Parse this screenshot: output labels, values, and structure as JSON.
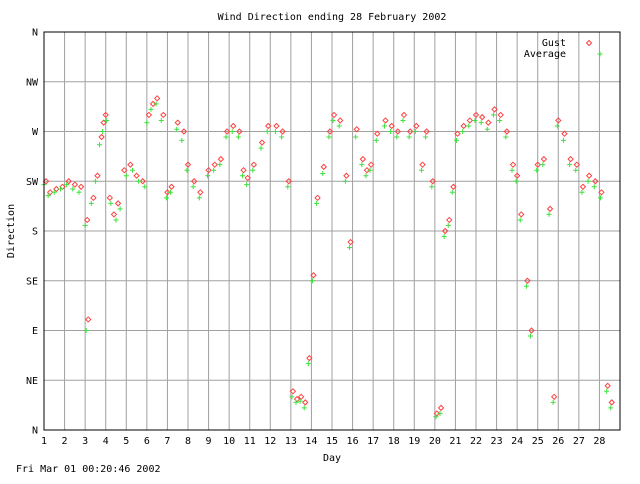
{
  "chart_data": {
    "type": "scatter",
    "title": "Wind Direction ending 28 February 2002",
    "xlabel": "Day",
    "ylabel": "Direction",
    "x_ticks": [
      "1",
      "2",
      "3",
      "4",
      "5",
      "6",
      "7",
      "8",
      "9",
      "10",
      "11",
      "12",
      "13",
      "14",
      "15",
      "16",
      "17",
      "18",
      "19",
      "20",
      "21",
      "22",
      "23",
      "24",
      "25",
      "26",
      "27",
      "28"
    ],
    "y_ticks": [
      "N",
      "NE",
      "E",
      "SE",
      "S",
      "SW",
      "W",
      "NW",
      "N"
    ],
    "xlim": [
      1,
      29
    ],
    "ylim": [
      0,
      360
    ],
    "grid": true,
    "legend_position": "top-right",
    "series": [
      {
        "name": "Gust",
        "marker": "diamond",
        "color": "#ff4040",
        "points": [
          [
            1.1,
            225
          ],
          [
            1.3,
            215
          ],
          [
            1.6,
            218
          ],
          [
            1.9,
            220
          ],
          [
            2.2,
            225
          ],
          [
            2.5,
            222
          ],
          [
            2.8,
            220
          ],
          [
            3.1,
            190
          ],
          [
            3.15,
            100
          ],
          [
            3.4,
            210
          ],
          [
            3.6,
            230
          ],
          [
            3.8,
            265
          ],
          [
            3.9,
            278
          ],
          [
            4.0,
            285
          ],
          [
            4.2,
            210
          ],
          [
            4.4,
            195
          ],
          [
            4.6,
            205
          ],
          [
            4.9,
            235
          ],
          [
            5.2,
            240
          ],
          [
            5.5,
            230
          ],
          [
            5.8,
            225
          ],
          [
            6.1,
            285
          ],
          [
            6.3,
            295
          ],
          [
            6.5,
            300
          ],
          [
            6.8,
            285
          ],
          [
            7.0,
            215
          ],
          [
            7.2,
            220
          ],
          [
            7.5,
            278
          ],
          [
            7.8,
            270
          ],
          [
            8.0,
            240
          ],
          [
            8.3,
            225
          ],
          [
            8.6,
            215
          ],
          [
            9.0,
            235
          ],
          [
            9.3,
            240
          ],
          [
            9.6,
            245
          ],
          [
            9.9,
            270
          ],
          [
            10.2,
            275
          ],
          [
            10.5,
            270
          ],
          [
            10.7,
            235
          ],
          [
            10.9,
            228
          ],
          [
            11.2,
            240
          ],
          [
            11.6,
            260
          ],
          [
            11.9,
            275
          ],
          [
            12.3,
            275
          ],
          [
            12.6,
            270
          ],
          [
            12.9,
            225
          ],
          [
            13.1,
            35
          ],
          [
            13.3,
            28
          ],
          [
            13.5,
            30
          ],
          [
            13.7,
            25
          ],
          [
            13.9,
            65
          ],
          [
            14.1,
            140
          ],
          [
            14.3,
            210
          ],
          [
            14.6,
            238
          ],
          [
            14.9,
            270
          ],
          [
            15.1,
            285
          ],
          [
            15.4,
            280
          ],
          [
            15.7,
            230
          ],
          [
            15.9,
            170
          ],
          [
            16.2,
            272
          ],
          [
            16.5,
            245
          ],
          [
            16.7,
            235
          ],
          [
            16.9,
            240
          ],
          [
            17.2,
            268
          ],
          [
            17.6,
            280
          ],
          [
            17.9,
            275
          ],
          [
            18.2,
            270
          ],
          [
            18.5,
            285
          ],
          [
            18.8,
            270
          ],
          [
            19.1,
            275
          ],
          [
            19.4,
            240
          ],
          [
            19.6,
            270
          ],
          [
            19.9,
            225
          ],
          [
            20.1,
            15
          ],
          [
            20.3,
            20
          ],
          [
            20.5,
            180
          ],
          [
            20.7,
            190
          ],
          [
            20.9,
            220
          ],
          [
            21.1,
            268
          ],
          [
            21.4,
            275
          ],
          [
            21.7,
            280
          ],
          [
            22.0,
            285
          ],
          [
            22.3,
            283
          ],
          [
            22.6,
            278
          ],
          [
            22.9,
            290
          ],
          [
            23.2,
            285
          ],
          [
            23.5,
            270
          ],
          [
            23.8,
            240
          ],
          [
            24.0,
            230
          ],
          [
            24.2,
            195
          ],
          [
            24.5,
            135
          ],
          [
            24.7,
            90
          ],
          [
            25.0,
            240
          ],
          [
            25.3,
            245
          ],
          [
            25.6,
            200
          ],
          [
            25.8,
            30
          ],
          [
            26.0,
            280
          ],
          [
            26.3,
            268
          ],
          [
            26.6,
            245
          ],
          [
            26.9,
            240
          ],
          [
            27.2,
            220
          ],
          [
            27.5,
            230
          ],
          [
            27.8,
            225
          ],
          [
            28.1,
            215
          ],
          [
            28.4,
            40
          ],
          [
            28.6,
            25
          ]
        ]
      },
      {
        "name": "Average",
        "marker": "plus",
        "color": "#40e040",
        "points": [
          [
            1.0,
            222
          ],
          [
            1.2,
            212
          ],
          [
            1.5,
            215
          ],
          [
            1.8,
            218
          ],
          [
            2.1,
            222
          ],
          [
            2.4,
            218
          ],
          [
            2.7,
            215
          ],
          [
            3.0,
            185
          ],
          [
            3.05,
            90
          ],
          [
            3.3,
            205
          ],
          [
            3.5,
            225
          ],
          [
            3.7,
            258
          ],
          [
            3.85,
            270
          ],
          [
            4.05,
            280
          ],
          [
            4.25,
            205
          ],
          [
            4.5,
            190
          ],
          [
            4.7,
            200
          ],
          [
            5.0,
            230
          ],
          [
            5.3,
            235
          ],
          [
            5.6,
            225
          ],
          [
            5.9,
            220
          ],
          [
            6.0,
            278
          ],
          [
            6.2,
            290
          ],
          [
            6.45,
            295
          ],
          [
            6.7,
            280
          ],
          [
            6.95,
            210
          ],
          [
            7.15,
            215
          ],
          [
            7.45,
            272
          ],
          [
            7.7,
            262
          ],
          [
            7.95,
            235
          ],
          [
            8.25,
            220
          ],
          [
            8.55,
            210
          ],
          [
            8.95,
            230
          ],
          [
            9.25,
            235
          ],
          [
            9.55,
            240
          ],
          [
            9.85,
            265
          ],
          [
            10.15,
            270
          ],
          [
            10.45,
            265
          ],
          [
            10.65,
            230
          ],
          [
            10.85,
            222
          ],
          [
            11.15,
            235
          ],
          [
            11.55,
            255
          ],
          [
            11.85,
            270
          ],
          [
            12.25,
            270
          ],
          [
            12.55,
            265
          ],
          [
            12.85,
            220
          ],
          [
            13.05,
            30
          ],
          [
            13.25,
            25
          ],
          [
            13.45,
            26
          ],
          [
            13.65,
            20
          ],
          [
            13.85,
            60
          ],
          [
            14.05,
            135
          ],
          [
            14.25,
            205
          ],
          [
            14.55,
            232
          ],
          [
            14.85,
            265
          ],
          [
            15.05,
            280
          ],
          [
            15.35,
            275
          ],
          [
            15.65,
            225
          ],
          [
            15.85,
            165
          ],
          [
            16.15,
            265
          ],
          [
            16.45,
            240
          ],
          [
            16.65,
            230
          ],
          [
            16.85,
            235
          ],
          [
            17.15,
            262
          ],
          [
            17.55,
            275
          ],
          [
            17.85,
            270
          ],
          [
            18.15,
            265
          ],
          [
            18.45,
            280
          ],
          [
            18.75,
            265
          ],
          [
            19.05,
            270
          ],
          [
            19.35,
            235
          ],
          [
            19.55,
            265
          ],
          [
            19.85,
            220
          ],
          [
            20.05,
            12
          ],
          [
            20.25,
            15
          ],
          [
            20.45,
            175
          ],
          [
            20.65,
            185
          ],
          [
            20.85,
            215
          ],
          [
            21.05,
            262
          ],
          [
            21.35,
            270
          ],
          [
            21.65,
            275
          ],
          [
            21.95,
            280
          ],
          [
            22.25,
            278
          ],
          [
            22.55,
            272
          ],
          [
            22.85,
            285
          ],
          [
            23.15,
            280
          ],
          [
            23.45,
            265
          ],
          [
            23.75,
            235
          ],
          [
            23.95,
            225
          ],
          [
            24.15,
            190
          ],
          [
            24.45,
            130
          ],
          [
            24.65,
            85
          ],
          [
            24.95,
            235
          ],
          [
            25.25,
            240
          ],
          [
            25.55,
            195
          ],
          [
            25.75,
            25
          ],
          [
            25.95,
            275
          ],
          [
            26.25,
            262
          ],
          [
            26.55,
            240
          ],
          [
            26.85,
            235
          ],
          [
            27.15,
            215
          ],
          [
            27.45,
            225
          ],
          [
            27.75,
            220
          ],
          [
            28.05,
            210
          ],
          [
            28.35,
            35
          ],
          [
            28.55,
            20
          ]
        ]
      }
    ]
  },
  "footer": {
    "timestamp": "Fri Mar 01 00:20:46 2002"
  }
}
